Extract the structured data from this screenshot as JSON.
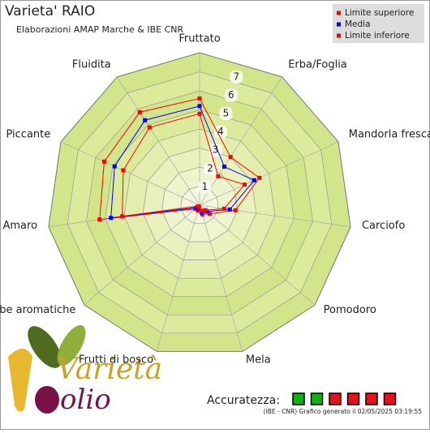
{
  "chart_data": {
    "type": "radar",
    "title": "Varieta' RAIO",
    "subtitle": "Elaborazioni AMAP Marche & IBE CNR",
    "categories": [
      "Fruttato",
      "Erba/Foglia",
      "Mandorla fresca",
      "Carciofo",
      "Pomodoro",
      "Mela",
      "Frutti di bosco",
      "Erbe aromatiche",
      "Amaro",
      "Piccante",
      "Fluidita"
    ],
    "series": [
      {
        "name": "Limite superiore",
        "color": "#ff0000",
        "values": [
          5.6,
          3.0,
          3.45,
          1.9,
          0.7,
          0.5,
          0.3,
          0.3,
          5.3,
          5.5,
          5.8
        ]
      },
      {
        "name": "Media",
        "color": "#0000ff",
        "values": [
          5.2,
          2.4,
          3.15,
          1.6,
          0.5,
          0.4,
          0.2,
          0.2,
          4.7,
          4.9,
          5.3
        ]
      },
      {
        "name": "Limite inferiore",
        "color": "#ff0000",
        "values": [
          4.8,
          1.8,
          2.6,
          1.3,
          0.4,
          0.3,
          0.1,
          0.1,
          4.1,
          4.4,
          4.85
        ]
      }
    ],
    "ylim": [
      0,
      8
    ],
    "yticks": [
      1,
      2,
      3,
      4,
      5,
      6,
      7
    ],
    "grid": true,
    "legend": "top-right"
  },
  "accuracy": {
    "label": "Accuratezza:",
    "levels": [
      "#12b012",
      "#12b012",
      "#e8101c",
      "#e8101c",
      "#e8101c",
      "#e8101c"
    ]
  },
  "footer": "(IBE - CNR) Grafico generato il 02/05/2025 03:19:55",
  "logo": {
    "word": "Varietà",
    "brand": "olio"
  }
}
